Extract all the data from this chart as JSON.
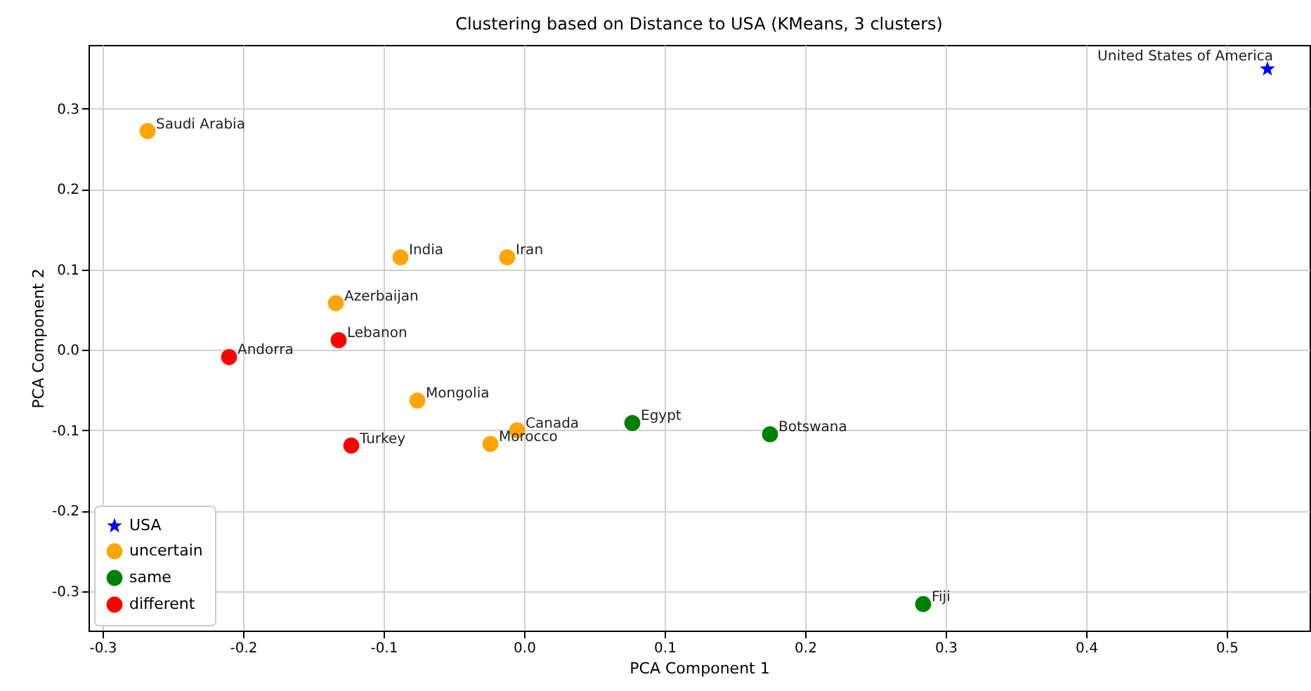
{
  "chart_data": {
    "type": "scatter",
    "title": "Clustering based on Distance to USA (KMeans, 3 clusters)",
    "xlabel": "PCA Component 1",
    "ylabel": "PCA Component 2",
    "xlim": [
      -0.31,
      0.559
    ],
    "ylim": [
      -0.349,
      0.379
    ],
    "xticks": [
      {
        "value": -0.3,
        "label": "-0.3"
      },
      {
        "value": -0.2,
        "label": "-0.2"
      },
      {
        "value": -0.1,
        "label": "-0.1"
      },
      {
        "value": 0,
        "label": "0.0"
      },
      {
        "value": 0.1,
        "label": "0.1"
      },
      {
        "value": 0.2,
        "label": "0.2"
      },
      {
        "value": 0.3,
        "label": "0.3"
      },
      {
        "value": 0.4,
        "label": "0.4"
      },
      {
        "value": 0.5,
        "label": "0.5"
      }
    ],
    "yticks": [
      {
        "value": -0.3,
        "label": "-0.3"
      },
      {
        "value": -0.2,
        "label": "-0.2"
      },
      {
        "value": -0.1,
        "label": "-0.1"
      },
      {
        "value": 0,
        "label": "0.0"
      },
      {
        "value": 0.1,
        "label": "0.1"
      },
      {
        "value": 0.2,
        "label": "0.2"
      },
      {
        "value": 0.3,
        "label": "0.3"
      }
    ],
    "grid": true,
    "legend": "bottom left",
    "series": [
      {
        "name": "USA",
        "color": "#0000ff",
        "marker": "star",
        "x": [
          0.529
        ],
        "values": [
          0.349
        ]
      },
      {
        "name": "uncertain",
        "color": "#ffa500",
        "marker": "circle",
        "x": [
          -0.268,
          -0.088,
          -0.012,
          -0.134,
          -0.076,
          -0.005,
          -0.024
        ],
        "values": [
          0.272,
          0.115,
          0.115,
          0.058,
          -0.063,
          -0.1,
          -0.117
        ]
      },
      {
        "name": "same",
        "color": "#008000",
        "marker": "circle",
        "x": [
          0.077,
          0.175,
          0.284
        ],
        "values": [
          -0.091,
          -0.105,
          -0.316
        ]
      },
      {
        "name": "different",
        "color": "#ff0000",
        "marker": "circle",
        "x": [
          -0.132,
          -0.21,
          -0.123
        ],
        "values": [
          0.012,
          -0.009,
          -0.119
        ]
      }
    ],
    "annotations": [
      {
        "text": "United States of America",
        "x": 0.529,
        "y": 0.349
      },
      {
        "text": "Saudi Arabia",
        "x": -0.268,
        "y": 0.272
      },
      {
        "text": "India",
        "x": -0.088,
        "y": 0.115
      },
      {
        "text": "Iran",
        "x": -0.012,
        "y": 0.115
      },
      {
        "text": "Azerbaijan",
        "x": -0.134,
        "y": 0.058
      },
      {
        "text": "Lebanon",
        "x": -0.132,
        "y": 0.012
      },
      {
        "text": "Andorra",
        "x": -0.21,
        "y": -0.009
      },
      {
        "text": "Mongolia",
        "x": -0.076,
        "y": -0.063
      },
      {
        "text": "Canada",
        "x": -0.005,
        "y": -0.1
      },
      {
        "text": "Egypt",
        "x": 0.077,
        "y": -0.091
      },
      {
        "text": "Botswana",
        "x": 0.175,
        "y": -0.105
      },
      {
        "text": "Morocco",
        "x": -0.024,
        "y": -0.117
      },
      {
        "text": "Turkey",
        "x": -0.123,
        "y": -0.119
      },
      {
        "text": "Fiji",
        "x": 0.284,
        "y": -0.316
      }
    ]
  }
}
